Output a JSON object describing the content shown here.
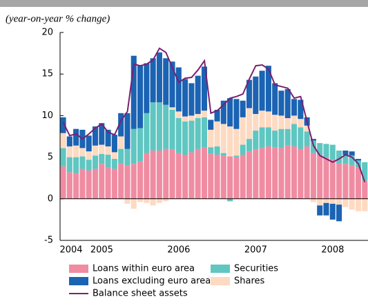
{
  "chart_data": {
    "type": "bar",
    "subtitle": "(year-on-year % change)",
    "categories": [
      "2004",
      null,
      null,
      null,
      null,
      null,
      "2005",
      null,
      null,
      null,
      null,
      null,
      null,
      null,
      null,
      null,
      null,
      null,
      "2006",
      null,
      null,
      null,
      null,
      null,
      null,
      null,
      null,
      null,
      null,
      null,
      "2007",
      null,
      null,
      null,
      null,
      null,
      null,
      null,
      null,
      null,
      null,
      null,
      "2008",
      null,
      null,
      null,
      null,
      null
    ],
    "ylim": [
      -5,
      20
    ],
    "yticks": [
      -5,
      0,
      5,
      10,
      15,
      20
    ],
    "stacked": true,
    "series": [
      {
        "name": "Loans within euro area",
        "type": "bar",
        "color": "#f08ca2",
        "values": [
          3.9,
          3.2,
          3.1,
          3.6,
          3.4,
          3.6,
          4.2,
          3.8,
          3.6,
          4.3,
          4.0,
          4.2,
          4.5,
          5.5,
          5.8,
          5.8,
          6.0,
          5.9,
          5.5,
          5.3,
          5.6,
          6.0,
          6.2,
          5.4,
          5.3,
          5.2,
          5.1,
          5.0,
          5.3,
          5.7,
          5.9,
          6.1,
          6.3,
          6.2,
          6.1,
          6.4,
          6.3,
          6.0,
          6.3,
          5.5,
          5.3,
          5.0,
          4.7,
          4.3,
          4.2,
          4.0,
          3.8,
          2.2
        ]
      },
      {
        "name": "Securities",
        "type": "bar",
        "color": "#5fc6c1",
        "values": [
          2.2,
          1.8,
          1.9,
          1.5,
          1.3,
          1.6,
          1.2,
          1.5,
          1.2,
          1.7,
          2.0,
          4.2,
          4.0,
          4.8,
          5.8,
          5.8,
          5.3,
          4.8,
          4.2,
          4.0,
          3.8,
          3.7,
          3.6,
          0.8,
          1.0,
          0.3,
          -0.3,
          0.2,
          1.2,
          1.5,
          2.3,
          2.5,
          2.3,
          2.0,
          2.3,
          2.0,
          2.7,
          2.6,
          1.8,
          1.5,
          1.4,
          1.6,
          1.8,
          1.5,
          1.1,
          1.2,
          0.8,
          2.2
        ]
      },
      {
        "name": "Shares",
        "type": "bar",
        "color": "#fddac2",
        "values": [
          1.8,
          1.3,
          1.4,
          1.0,
          1.0,
          1.2,
          1.1,
          1.0,
          0.8,
          1.5,
          -0.6,
          -1.2,
          -0.4,
          -0.5,
          -0.8,
          -0.5,
          -0.3,
          0.3,
          0.8,
          0.6,
          0.6,
          0.5,
          0.8,
          2.1,
          3.0,
          3.5,
          3.6,
          3.2,
          3.3,
          3.7,
          2.0,
          2.0,
          1.9,
          1.9,
          1.6,
          1.3,
          1.0,
          1.0,
          0.7,
          -0.4,
          -0.8,
          -0.5,
          -0.6,
          -0.7,
          -1.0,
          -1.3,
          -1.5,
          -1.5
        ]
      },
      {
        "name": "Loans excluding euro area",
        "type": "bar",
        "color": "#1b63b3",
        "values": [
          1.9,
          1.2,
          2.0,
          2.2,
          1.9,
          2.3,
          2.6,
          2.0,
          2.1,
          2.8,
          4.3,
          8.8,
          7.5,
          6.0,
          5.3,
          6.0,
          5.6,
          5.5,
          5.3,
          4.5,
          3.9,
          4.6,
          5.3,
          1.2,
          1.4,
          2.8,
          3.4,
          3.6,
          2.0,
          3.4,
          4.5,
          4.8,
          5.5,
          3.8,
          3.0,
          3.5,
          2.0,
          2.3,
          1.0,
          0.2,
          -1.2,
          -1.5,
          -1.9,
          -2.0,
          0.5,
          0.5,
          0.2,
          0.0
        ]
      },
      {
        "name": "Balance sheet assets",
        "type": "line",
        "color": "#7b1f6f",
        "values": [
          9.2,
          7.6,
          7.8,
          7.2,
          7.8,
          8.5,
          9.0,
          8.0,
          7.7,
          9.4,
          10.5,
          16.2,
          16.0,
          16.2,
          16.7,
          18.1,
          17.6,
          15.8,
          14.0,
          14.5,
          14.6,
          15.5,
          16.6,
          10.3,
          10.6,
          11.3,
          12.1,
          12.3,
          12.6,
          14.4,
          16.0,
          16.1,
          15.6,
          13.7,
          13.5,
          13.3,
          12.1,
          12.3,
          9.3,
          6.4,
          5.2,
          4.8,
          4.4,
          4.8,
          5.3,
          5.0,
          4.2,
          2.0
        ]
      }
    ]
  }
}
